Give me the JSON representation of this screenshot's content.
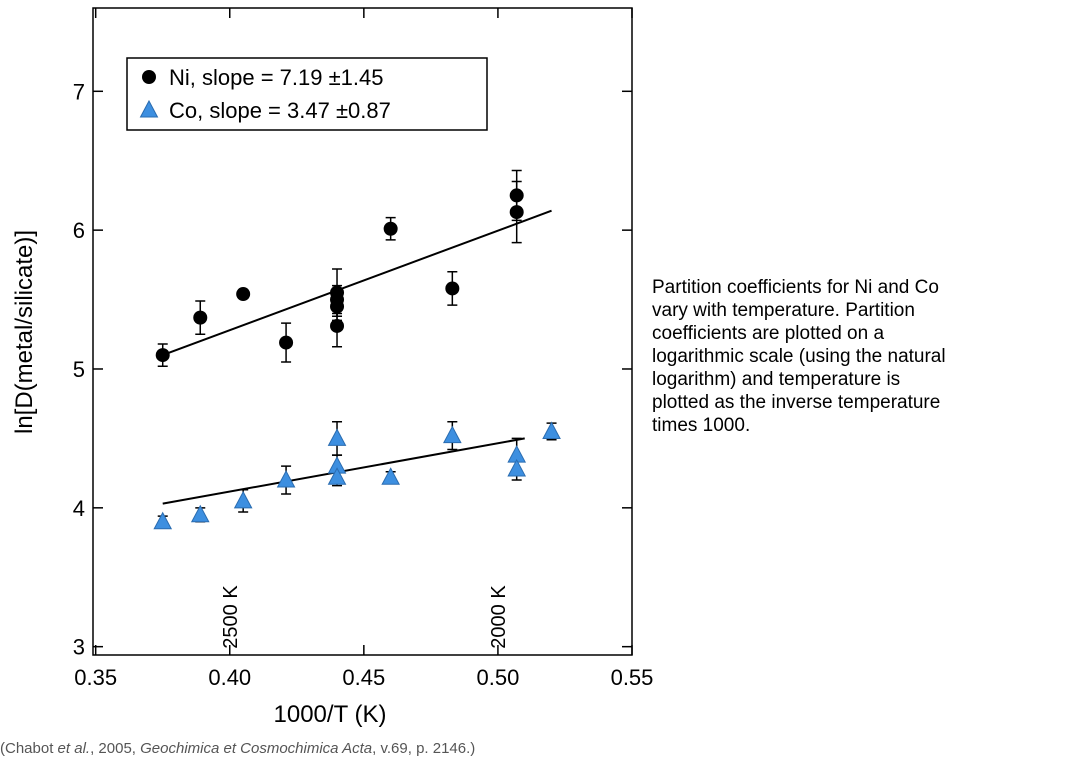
{
  "chart_data": {
    "type": "scatter",
    "x_label": "1000/T (K)",
    "y_label": "ln[D(metal/silicate)]",
    "xlim": [
      0.349,
      0.55
    ],
    "ylim": [
      2.94,
      7.6
    ],
    "xticks": [
      0.35,
      {
        "value": 0.4,
        "label": "0.40"
      },
      0.45,
      {
        "value": 0.5,
        "label": "0.50"
      },
      0.55
    ],
    "yticks": [
      3,
      4,
      5,
      6,
      7
    ],
    "legend": "upper left",
    "series": [
      {
        "name": "Ni, slope = 7.19 ±1.45",
        "color": "#000000",
        "marker": "circle",
        "x": [
          0.375,
          0.389,
          0.405,
          0.421,
          0.44,
          0.44,
          0.44,
          0.44,
          0.46,
          0.483,
          0.507,
          0.507
        ],
        "values": [
          5.1,
          5.37,
          5.54,
          5.19,
          5.55,
          5.5,
          5.45,
          5.31,
          6.01,
          5.58,
          6.25,
          6.13
        ],
        "errors": [
          0.08,
          0.12,
          0.03,
          0.14,
          0.17,
          0.1,
          0.1,
          0.15,
          0.08,
          0.12,
          0.18,
          0.22
        ],
        "fit": {
          "x": [
            0.375,
            0.52
          ],
          "y": [
            5.1,
            6.14
          ]
        }
      },
      {
        "name": "Co, slope = 3.47 ±0.87",
        "color": "#3d8fe0",
        "marker": "triangle",
        "x": [
          0.375,
          0.389,
          0.405,
          0.421,
          0.44,
          0.44,
          0.44,
          0.46,
          0.483,
          0.507,
          0.507,
          0.52
        ],
        "values": [
          3.9,
          3.95,
          4.05,
          4.2,
          4.5,
          4.3,
          4.22,
          4.22,
          4.52,
          4.38,
          4.28,
          4.55
        ],
        "errors": [
          0.04,
          0.05,
          0.08,
          0.1,
          0.12,
          0.08,
          0.06,
          0.04,
          0.1,
          0.12,
          0.08,
          0.06
        ],
        "fit": {
          "x": [
            0.375,
            0.51
          ],
          "y": [
            4.03,
            4.5
          ]
        }
      }
    ],
    "annotations": [
      {
        "text": "2500 K",
        "x": 0.4
      },
      {
        "text": "2000 K",
        "x": 0.5
      }
    ]
  },
  "caption": [
    "Partition coefficients for Ni and Co",
    "vary with temperature. Partition",
    "coefficients are plotted on a",
    "logarithmic scale (using the natural",
    "logarithm) and temperature is",
    "plotted as the inverse temperature",
    "times 1000."
  ],
  "credit": [
    "(Chabot ",
    "et al.",
    ", 2005, ",
    "Geochimica et Cosmochimica Acta",
    ", v.69, p. 2146.)"
  ]
}
